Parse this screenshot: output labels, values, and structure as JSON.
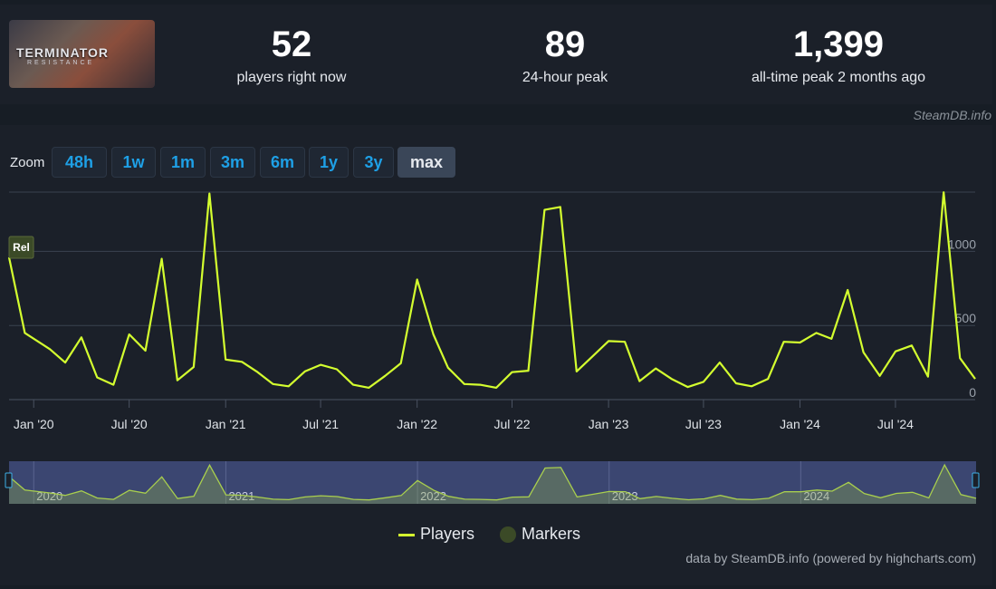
{
  "game": {
    "logo_line1": "TERMINATOR",
    "logo_line2": "RESISTANCE"
  },
  "stats": [
    {
      "value": "52",
      "label": "players right now"
    },
    {
      "value": "89",
      "label": "24-hour peak"
    },
    {
      "value": "1,399",
      "label": "all-time peak 2 months ago"
    }
  ],
  "credit_top": "SteamDB.info",
  "zoom": {
    "label": "Zoom",
    "buttons": [
      "48h",
      "1w",
      "1m",
      "3m",
      "6m",
      "1y",
      "3y",
      "max"
    ],
    "active": "max"
  },
  "legend": {
    "players": "Players",
    "markers": "Markers"
  },
  "credit_bottom": "data by SteamDB.info (powered by highcharts.com)",
  "colors": {
    "line": "#d4ff2f",
    "marker": "#3b4a27",
    "nav_bg": "#3b4671",
    "grid": "#3a4250"
  },
  "chart_data": {
    "type": "line",
    "title": "",
    "xlabel": "",
    "ylabel": "",
    "ylim": [
      0,
      1400
    ],
    "yticks": [
      0,
      500,
      1000
    ],
    "ytick_labels": [
      "0",
      "500",
      "1000"
    ],
    "x_tick_labels": [
      "Jan '20",
      "Jul '20",
      "Jan '21",
      "Jul '21",
      "Jan '22",
      "Jul '22",
      "Jan '23",
      "Jul '23",
      "Jan '24",
      "Jul '24"
    ],
    "x_tick_dates": [
      "2020-01-01",
      "2020-07-01",
      "2021-01-01",
      "2021-07-01",
      "2022-01-01",
      "2022-07-01",
      "2023-01-01",
      "2023-07-01",
      "2024-01-01",
      "2024-07-01"
    ],
    "xlim": [
      "2019-11-15",
      "2024-11-30"
    ],
    "marker_label": "Rel",
    "navigator_labels": [
      "2020",
      "2021",
      "2022",
      "2023",
      "2024"
    ],
    "series": [
      {
        "name": "Players",
        "points": [
          [
            "2019-11-15",
            960
          ],
          [
            "2019-12-15",
            450
          ],
          [
            "2020-02-01",
            340
          ],
          [
            "2020-03-01",
            250
          ],
          [
            "2020-04-01",
            420
          ],
          [
            "2020-05-01",
            150
          ],
          [
            "2020-06-01",
            100
          ],
          [
            "2020-07-01",
            440
          ],
          [
            "2020-08-01",
            330
          ],
          [
            "2020-09-01",
            950
          ],
          [
            "2020-10-01",
            130
          ],
          [
            "2020-11-01",
            220
          ],
          [
            "2020-12-01",
            1390
          ],
          [
            "2021-01-01",
            270
          ],
          [
            "2021-02-01",
            255
          ],
          [
            "2021-03-01",
            190
          ],
          [
            "2021-04-01",
            105
          ],
          [
            "2021-05-01",
            90
          ],
          [
            "2021-06-01",
            190
          ],
          [
            "2021-07-01",
            235
          ],
          [
            "2021-08-01",
            205
          ],
          [
            "2021-09-01",
            100
          ],
          [
            "2021-10-01",
            80
          ],
          [
            "2021-11-01",
            160
          ],
          [
            "2021-12-01",
            245
          ],
          [
            "2022-01-01",
            810
          ],
          [
            "2022-02-01",
            440
          ],
          [
            "2022-03-01",
            215
          ],
          [
            "2022-04-01",
            105
          ],
          [
            "2022-05-01",
            100
          ],
          [
            "2022-06-01",
            80
          ],
          [
            "2022-07-01",
            185
          ],
          [
            "2022-08-01",
            195
          ],
          [
            "2022-09-01",
            1280
          ],
          [
            "2022-10-01",
            1300
          ],
          [
            "2022-11-01",
            190
          ],
          [
            "2022-12-01",
            290
          ],
          [
            "2023-01-01",
            395
          ],
          [
            "2023-02-01",
            390
          ],
          [
            "2023-03-01",
            125
          ],
          [
            "2023-04-01",
            210
          ],
          [
            "2023-05-01",
            140
          ],
          [
            "2023-06-01",
            85
          ],
          [
            "2023-07-01",
            120
          ],
          [
            "2023-08-01",
            250
          ],
          [
            "2023-09-01",
            110
          ],
          [
            "2023-10-01",
            90
          ],
          [
            "2023-11-01",
            140
          ],
          [
            "2023-12-01",
            390
          ],
          [
            "2024-01-01",
            385
          ],
          [
            "2024-02-01",
            450
          ],
          [
            "2024-03-01",
            410
          ],
          [
            "2024-04-01",
            740
          ],
          [
            "2024-05-01",
            320
          ],
          [
            "2024-06-01",
            160
          ],
          [
            "2024-07-01",
            325
          ],
          [
            "2024-08-01",
            365
          ],
          [
            "2024-09-01",
            155
          ],
          [
            "2024-10-01",
            1399
          ],
          [
            "2024-11-01",
            280
          ],
          [
            "2024-11-30",
            140
          ]
        ]
      }
    ]
  }
}
